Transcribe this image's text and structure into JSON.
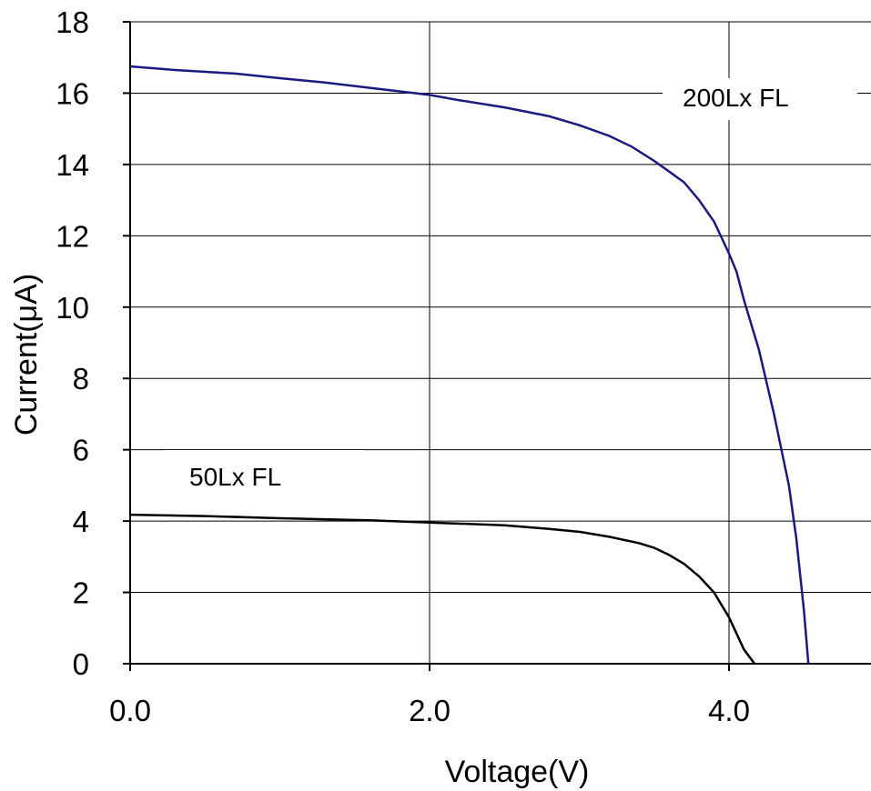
{
  "chart_data": {
    "type": "line",
    "title": "",
    "xlabel": "Voltage(V)",
    "ylabel": "Current(μA)",
    "xlim": [
      0,
      5
    ],
    "ylim": [
      0,
      18
    ],
    "x_ticks": [
      0,
      2,
      4
    ],
    "x_tick_labels": [
      "0.0",
      "2.0",
      "4.0"
    ],
    "y_ticks": [
      0,
      2,
      4,
      6,
      8,
      10,
      12,
      14,
      16,
      18
    ],
    "y_tick_labels": [
      "0",
      "2",
      "4",
      "6",
      "8",
      "10",
      "12",
      "14",
      "16",
      "18"
    ],
    "grid": true,
    "colors": {
      "200lx": "#1a1a80",
      "50lx": "#000000",
      "grid": "#000000"
    },
    "series": [
      {
        "name": "200Lx FL",
        "values": [
          [
            0,
            16.75
          ],
          [
            0.3,
            16.65
          ],
          [
            0.7,
            16.55
          ],
          [
            1.0,
            16.42
          ],
          [
            1.3,
            16.3
          ],
          [
            1.6,
            16.15
          ],
          [
            2.0,
            15.95
          ],
          [
            2.2,
            15.8
          ],
          [
            2.5,
            15.6
          ],
          [
            2.8,
            15.35
          ],
          [
            3.0,
            15.1
          ],
          [
            3.2,
            14.8
          ],
          [
            3.35,
            14.5
          ],
          [
            3.5,
            14.1
          ],
          [
            3.6,
            13.8
          ],
          [
            3.7,
            13.5
          ],
          [
            3.8,
            13.0
          ],
          [
            3.9,
            12.4
          ],
          [
            4.0,
            11.5
          ],
          [
            4.05,
            11.0
          ],
          [
            4.1,
            10.2
          ],
          [
            4.2,
            8.8
          ],
          [
            4.3,
            7.0
          ],
          [
            4.4,
            5.0
          ],
          [
            4.45,
            3.5
          ],
          [
            4.5,
            1.5
          ],
          [
            4.53,
            0
          ]
        ]
      },
      {
        "name": "50Lx FL",
        "values": [
          [
            0,
            4.18
          ],
          [
            0.5,
            4.14
          ],
          [
            1.0,
            4.08
          ],
          [
            1.6,
            4.02
          ],
          [
            2.0,
            3.96
          ],
          [
            2.5,
            3.88
          ],
          [
            2.8,
            3.78
          ],
          [
            3.0,
            3.7
          ],
          [
            3.2,
            3.56
          ],
          [
            3.4,
            3.38
          ],
          [
            3.5,
            3.25
          ],
          [
            3.6,
            3.05
          ],
          [
            3.7,
            2.8
          ],
          [
            3.8,
            2.45
          ],
          [
            3.9,
            2.0
          ],
          [
            4.0,
            1.3
          ],
          [
            4.05,
            0.85
          ],
          [
            4.1,
            0.4
          ],
          [
            4.17,
            0
          ]
        ]
      }
    ]
  }
}
